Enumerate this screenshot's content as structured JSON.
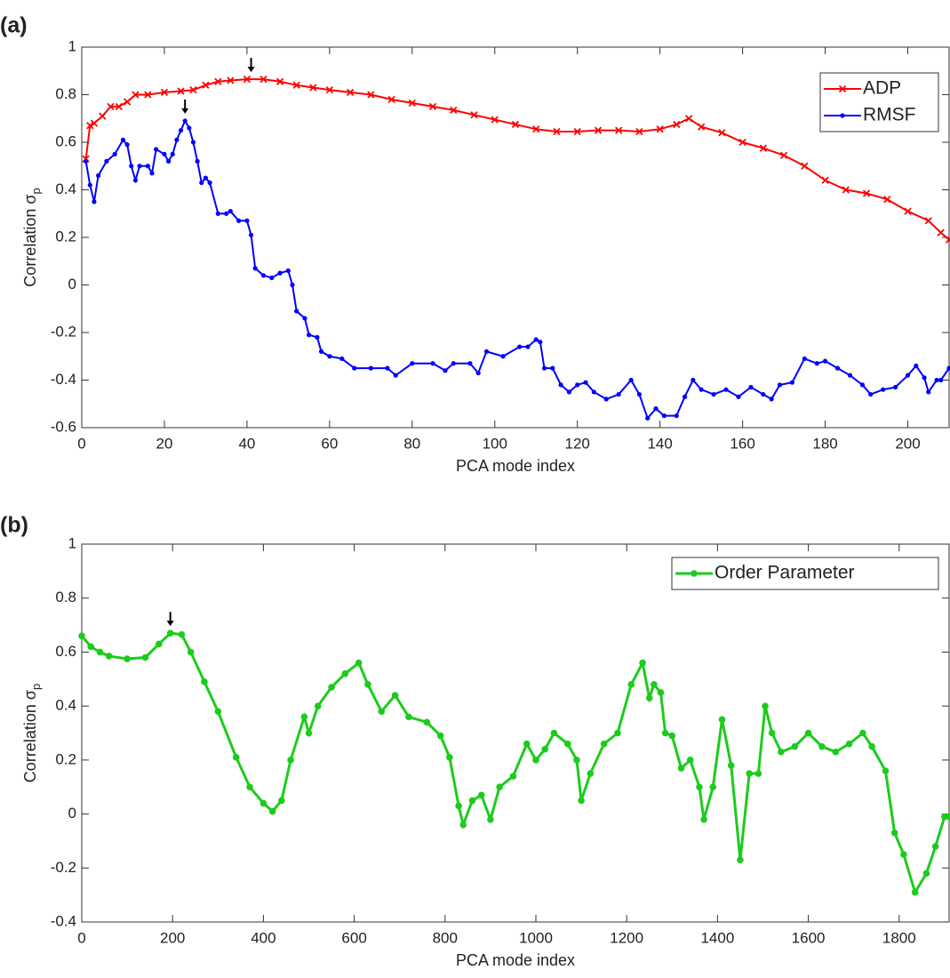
{
  "chart_data": [
    {
      "type": "line",
      "label": "(a)",
      "x_label": "PCA mode index",
      "y_label": {
        "text": "Correlation σ",
        "subscript": "p"
      },
      "xlim": [
        0,
        210
      ],
      "xticks": [
        0,
        20,
        40,
        60,
        80,
        100,
        120,
        140,
        160,
        180,
        200
      ],
      "ylim": [
        -0.6,
        1
      ],
      "yticks": [
        -0.6,
        -0.4,
        -0.2,
        0,
        0.2,
        0.4,
        0.6,
        0.8,
        1
      ],
      "legend": "upper right",
      "series": [
        {
          "name": "ADP",
          "color": "#ff0000",
          "marker": "x",
          "x": [
            1,
            2,
            3,
            5,
            7,
            9,
            11,
            13,
            16,
            20,
            24,
            27,
            30,
            33,
            36,
            40,
            44,
            48,
            52,
            56,
            60,
            65,
            70,
            75,
            80,
            85,
            90,
            95,
            100,
            105,
            110,
            115,
            120,
            125,
            130,
            135,
            140,
            144,
            147,
            150,
            155,
            160,
            165,
            170,
            175,
            180,
            185,
            190,
            195,
            200,
            205,
            208,
            210
          ],
          "values": [
            0.53,
            0.67,
            0.68,
            0.71,
            0.75,
            0.75,
            0.77,
            0.8,
            0.8,
            0.81,
            0.815,
            0.82,
            0.84,
            0.855,
            0.86,
            0.865,
            0.865,
            0.855,
            0.84,
            0.83,
            0.82,
            0.81,
            0.8,
            0.78,
            0.765,
            0.75,
            0.735,
            0.715,
            0.695,
            0.675,
            0.655,
            0.645,
            0.645,
            0.65,
            0.65,
            0.645,
            0.655,
            0.675,
            0.7,
            0.665,
            0.64,
            0.6,
            0.575,
            0.545,
            0.5,
            0.44,
            0.4,
            0.385,
            0.36,
            0.31,
            0.27,
            0.22,
            0.19
          ]
        },
        {
          "name": "RMSF",
          "color": "#0000ff",
          "marker": "o",
          "x": [
            1,
            2,
            3,
            4,
            6,
            8,
            10,
            11,
            12,
            13,
            14,
            16,
            17,
            18,
            20,
            21,
            22,
            23,
            24,
            25,
            26,
            27,
            28,
            29,
            30,
            31,
            33,
            35,
            36,
            38,
            40,
            41,
            42,
            44,
            46,
            48,
            50,
            51,
            52,
            54,
            55,
            57,
            58,
            60,
            63,
            66,
            70,
            74,
            76,
            80,
            85,
            88,
            90,
            94,
            96,
            98,
            102,
            106,
            108,
            110,
            111,
            112,
            114,
            116,
            118,
            120,
            122,
            124,
            127,
            130,
            133,
            135,
            137,
            139,
            141,
            144,
            146,
            148,
            150,
            153,
            156,
            159,
            162,
            165,
            167,
            169,
            172,
            175,
            178,
            180,
            183,
            186,
            189,
            191,
            194,
            197,
            200,
            202,
            204,
            205,
            207,
            208,
            210
          ],
          "values": [
            0.52,
            0.42,
            0.35,
            0.46,
            0.52,
            0.55,
            0.61,
            0.59,
            0.5,
            0.44,
            0.5,
            0.5,
            0.47,
            0.57,
            0.55,
            0.52,
            0.55,
            0.61,
            0.65,
            0.69,
            0.66,
            0.6,
            0.52,
            0.43,
            0.45,
            0.43,
            0.3,
            0.3,
            0.31,
            0.27,
            0.27,
            0.21,
            0.07,
            0.04,
            0.03,
            0.05,
            0.06,
            0,
            -0.11,
            -0.14,
            -0.21,
            -0.22,
            -0.28,
            -0.3,
            -0.31,
            -0.35,
            -0.35,
            -0.35,
            -0.38,
            -0.33,
            -0.33,
            -0.36,
            -0.33,
            -0.33,
            -0.37,
            -0.28,
            -0.3,
            -0.26,
            -0.26,
            -0.23,
            -0.24,
            -0.35,
            -0.35,
            -0.42,
            -0.45,
            -0.42,
            -0.41,
            -0.45,
            -0.48,
            -0.46,
            -0.4,
            -0.46,
            -0.56,
            -0.52,
            -0.55,
            -0.55,
            -0.47,
            -0.4,
            -0.44,
            -0.46,
            -0.44,
            -0.47,
            -0.43,
            -0.46,
            -0.48,
            -0.42,
            -0.41,
            -0.31,
            -0.33,
            -0.32,
            -0.35,
            -0.38,
            -0.42,
            -0.46,
            -0.44,
            -0.43,
            -0.38,
            -0.34,
            -0.39,
            -0.45,
            -0.4,
            -0.4,
            -0.35
          ]
        }
      ],
      "arrows": [
        {
          "x": 41,
          "y": 0.865
        },
        {
          "x": 25,
          "y": 0.69
        }
      ]
    },
    {
      "type": "line",
      "label": "(b)",
      "x_label": "PCA mode index",
      "y_label": {
        "text": "Correlation σ",
        "subscript": "p"
      },
      "xlim": [
        0,
        1910
      ],
      "xticks": [
        0,
        200,
        400,
        600,
        800,
        1000,
        1200,
        1400,
        1600,
        1800
      ],
      "ylim": [
        -0.4,
        1
      ],
      "yticks": [
        -0.4,
        -0.2,
        0,
        0.2,
        0.4,
        0.6,
        0.8,
        1
      ],
      "legend": "upper right",
      "series": [
        {
          "name": "Order Parameter",
          "color": "#1ccc1c",
          "marker": "o",
          "x": [
            0,
            20,
            40,
            60,
            100,
            140,
            170,
            195,
            220,
            240,
            270,
            300,
            340,
            370,
            400,
            420,
            440,
            460,
            490,
            500,
            520,
            550,
            580,
            610,
            630,
            660,
            690,
            720,
            760,
            790,
            810,
            830,
            840,
            860,
            880,
            900,
            920,
            950,
            980,
            1000,
            1020,
            1040,
            1070,
            1090,
            1100,
            1120,
            1150,
            1180,
            1210,
            1235,
            1250,
            1260,
            1275,
            1285,
            1300,
            1320,
            1340,
            1360,
            1370,
            1390,
            1410,
            1430,
            1450,
            1470,
            1490,
            1505,
            1520,
            1540,
            1570,
            1600,
            1630,
            1660,
            1690,
            1720,
            1740,
            1770,
            1790,
            1810,
            1835,
            1860,
            1880,
            1900,
            1910
          ],
          "values": [
            0.66,
            0.62,
            0.6,
            0.585,
            0.575,
            0.58,
            0.63,
            0.67,
            0.665,
            0.6,
            0.49,
            0.38,
            0.21,
            0.1,
            0.04,
            0.01,
            0.05,
            0.2,
            0.36,
            0.3,
            0.4,
            0.47,
            0.52,
            0.56,
            0.48,
            0.38,
            0.44,
            0.36,
            0.34,
            0.29,
            0.21,
            0.03,
            -0.04,
            0.05,
            0.07,
            -0.02,
            0.1,
            0.14,
            0.26,
            0.2,
            0.24,
            0.3,
            0.26,
            0.2,
            0.05,
            0.15,
            0.26,
            0.3,
            0.48,
            0.56,
            0.43,
            0.48,
            0.45,
            0.3,
            0.29,
            0.17,
            0.2,
            0.1,
            -0.02,
            0.1,
            0.35,
            0.18,
            -0.17,
            0.15,
            0.15,
            0.4,
            0.3,
            0.23,
            0.25,
            0.3,
            0.25,
            0.23,
            0.26,
            0.3,
            0.25,
            0.16,
            -0.07,
            -0.15,
            -0.29,
            -0.22,
            -0.12,
            -0.01,
            -0.01
          ]
        }
      ],
      "arrows": [
        {
          "x": 195,
          "y": 0.67
        }
      ]
    }
  ]
}
